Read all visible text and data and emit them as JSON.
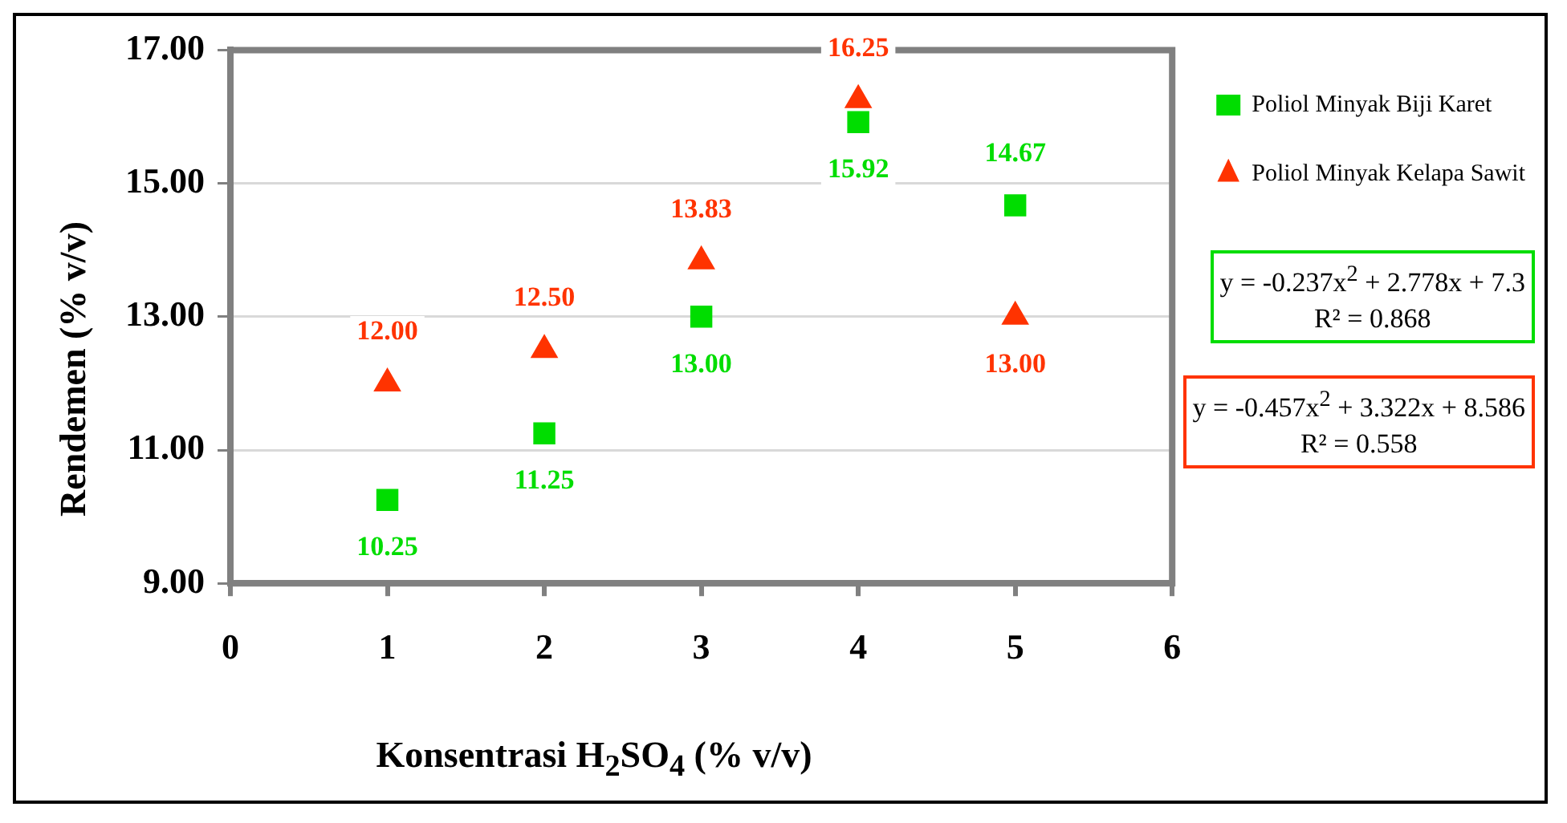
{
  "chart_data": {
    "type": "scatter",
    "xlabel": "Konsentrasi H$_{2}$SO$_{4}$ (% v/v)",
    "ylabel": "Rendemen (% v/v)",
    "x": [
      1,
      2,
      3,
      4,
      5
    ],
    "series": [
      {
        "name": "Poliol Minyak Biji Karet",
        "color": "#00dd00",
        "marker": "square",
        "values": [
          10.25,
          11.25,
          13.0,
          15.92,
          14.67
        ],
        "value_labels": [
          "10.25",
          "11.25",
          "13.00",
          "15.92",
          "14.67"
        ]
      },
      {
        "name": "Poliol Minyak Kelapa Sawit",
        "color": "#ff3300",
        "marker": "triangle",
        "values": [
          12.0,
          12.5,
          13.83,
          16.25,
          13.0
        ],
        "value_labels": [
          "12.00",
          "12.50",
          "13.83",
          "16.25",
          "13.00"
        ]
      }
    ],
    "xlim": [
      0,
      6
    ],
    "xticks": [
      0,
      1,
      2,
      3,
      4,
      5,
      6
    ],
    "ylim": [
      9,
      17
    ],
    "yticks": [
      {
        "value": 9,
        "label": "9.00"
      },
      {
        "value": 11,
        "label": "11.00"
      },
      {
        "value": 13,
        "label": "13.00"
      },
      {
        "value": 15,
        "label": "15.00"
      },
      {
        "value": 17,
        "label": "17.00"
      }
    ],
    "grid": "y",
    "legend": "right",
    "annotations": [
      "y = -0.237x$^{2}$ + 2.778x + 7.3",
      "R² = 0.868",
      "y = -0.457x$^{2}$ + 3.322x + 8.586",
      "R² = 0.558"
    ]
  }
}
